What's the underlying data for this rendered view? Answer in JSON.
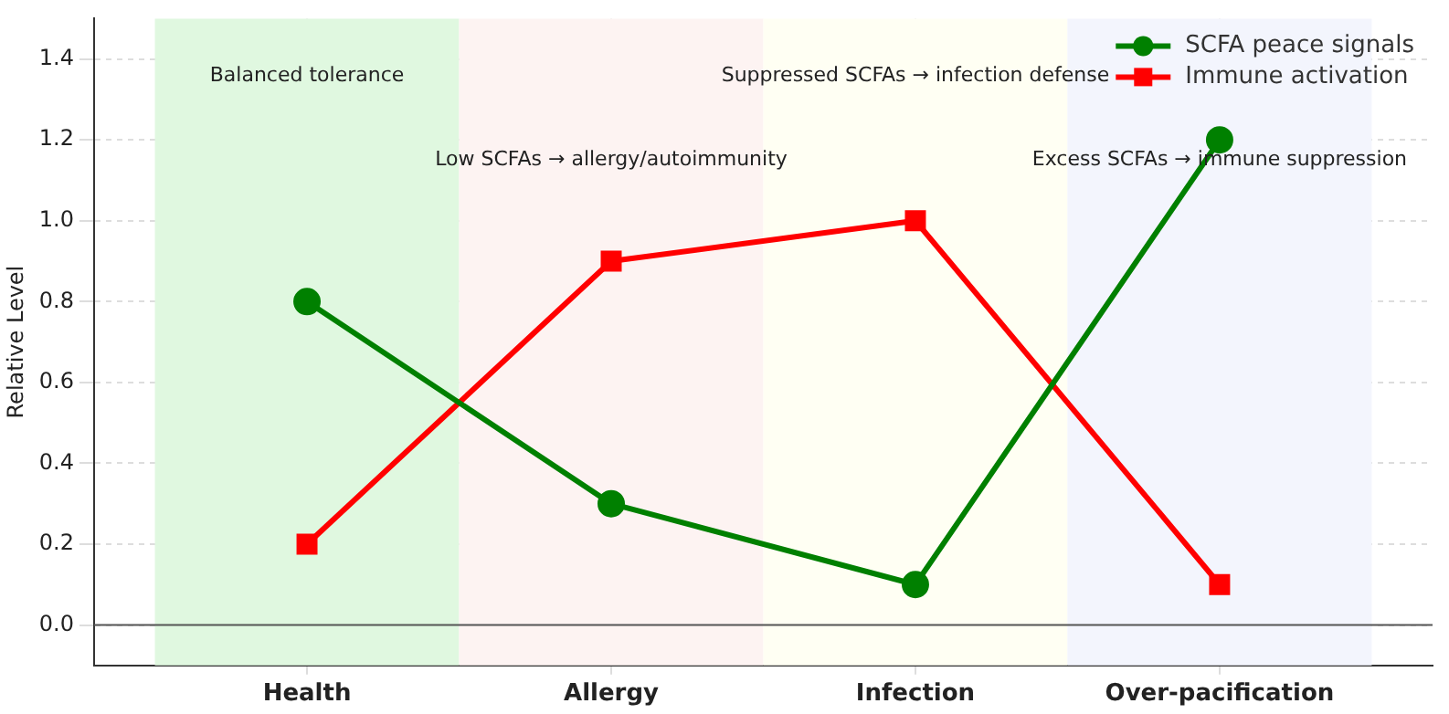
{
  "chart_data": {
    "type": "line",
    "ylabel": "Relative Level",
    "categories": [
      "Health",
      "Allergy",
      "Infection",
      "Over-pacification"
    ],
    "series": [
      {
        "name": "SCFA peace signals",
        "color": "#008000",
        "marker": "circle",
        "values": [
          0.8,
          0.3,
          0.1,
          1.2
        ]
      },
      {
        "name": "Immune activation",
        "color": "#ff0000",
        "marker": "square",
        "values": [
          0.2,
          0.9,
          1.0,
          0.1
        ]
      }
    ],
    "ylim": [
      -0.1,
      1.5
    ],
    "yticks": [
      {
        "value": 0,
        "label": "0.0"
      },
      0.2,
      0.4,
      0.6,
      0.8,
      {
        "value": 1,
        "label": "1.0"
      },
      1.2,
      1.4
    ],
    "ref_lines": [
      {
        "axis": "y",
        "value": 0,
        "color": "#555555"
      }
    ],
    "bands": [
      {
        "axis": "x",
        "from": "Health",
        "to": "Health",
        "color": "#e0f8e0"
      },
      {
        "axis": "x",
        "from": "Allergy",
        "to": "Allergy",
        "color": "#fdf3f2"
      },
      {
        "axis": "x",
        "from": "Infection",
        "to": "Infection",
        "color": "#fffff3"
      },
      {
        "axis": "x",
        "from": "Over-pacification",
        "to": "Over-pacification",
        "color": "#f3f5fd"
      }
    ],
    "annotations": [
      "Balanced tolerance",
      "Low SCFAs → allergy/autoimmunity",
      "Suppressed SCFAs → infection defense",
      "Excess SCFAs → immune suppression"
    ],
    "grid": true,
    "legend": "top right",
    "line_style": "solid"
  }
}
